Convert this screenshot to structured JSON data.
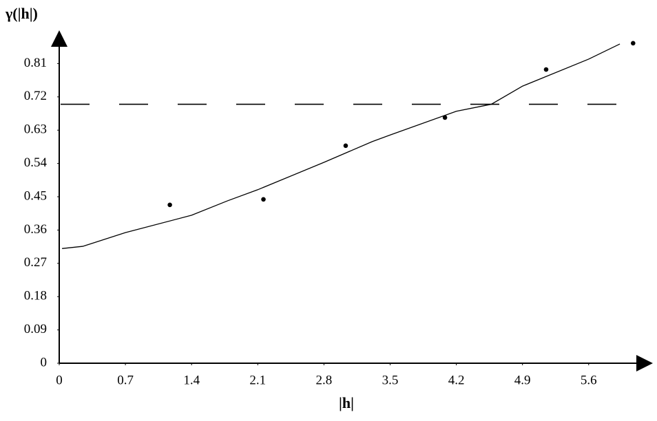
{
  "chart_data": {
    "type": "scatter",
    "xlabel": "|h|",
    "ylabel": "γ(|h|)",
    "xlim": [
      0,
      6.25
    ],
    "ylim": [
      0,
      0.89
    ],
    "xticks": [
      0,
      0.7,
      1.4,
      2.1,
      2.8,
      3.5,
      4.2,
      4.9,
      5.6
    ],
    "yticks": [
      0,
      0.09,
      0.18,
      0.27,
      0.36,
      0.45,
      0.54,
      0.63,
      0.72,
      0.81
    ],
    "color": "#000000",
    "points": {
      "x": [
        1.17,
        2.16,
        3.03,
        4.08,
        5.15,
        6.07
      ],
      "values": [
        0.428,
        0.443,
        0.588,
        0.664,
        0.794,
        0.865
      ]
    },
    "curve": {
      "x": [
        0.03,
        0.25,
        0.7,
        1.4,
        1.78,
        2.1,
        2.8,
        3.31,
        3.5,
        4.2,
        4.57,
        4.9,
        5.6,
        5.93
      ],
      "values": [
        0.31,
        0.316,
        0.353,
        0.4,
        0.439,
        0.469,
        0.543,
        0.599,
        0.617,
        0.681,
        0.7,
        0.749,
        0.822,
        0.863
      ]
    },
    "reference_line": 0.7
  }
}
